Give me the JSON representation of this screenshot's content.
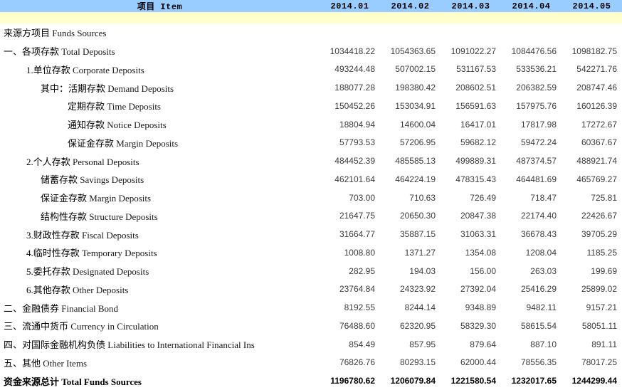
{
  "header": {
    "item_label": "项目 Item",
    "columns": [
      "2014.01",
      "2014.02",
      "2014.03",
      "2014.04",
      "2014.05"
    ]
  },
  "colors": {
    "header_bg": "#99CCFF",
    "subheader_bg": "#FFFFCC",
    "label_text": "#000000",
    "number_text": "#3c3c3c"
  },
  "rows": [
    {
      "label_zh": "来源方项目",
      "label_en": "Funds Sources",
      "indent": 0,
      "bold": false,
      "values": [
        "",
        "",
        "",
        "",
        ""
      ]
    },
    {
      "label_zh": "一、各项存款",
      "label_en": "Total Deposits",
      "indent": 0,
      "bold": false,
      "values": [
        "1034418.22",
        "1054363.65",
        "1091022.27",
        "1084476.56",
        "1098182.75"
      ]
    },
    {
      "label_zh": "1.单位存款",
      "label_en": "Corporate Deposits",
      "indent": 1,
      "bold": false,
      "values": [
        "493244.48",
        "507002.15",
        "531167.53",
        "533536.21",
        "542271.76"
      ]
    },
    {
      "label_zh": "其中：活期存款",
      "label_en": "Demand Deposits",
      "indent": 2,
      "bold": false,
      "values": [
        "188077.28",
        "198380.42",
        "208602.51",
        "206382.59",
        "208747.46"
      ]
    },
    {
      "label_zh": "定期存款",
      "label_en": "Time Deposits",
      "indent": 3,
      "bold": false,
      "values": [
        "150452.26",
        "153034.91",
        "156591.63",
        "157975.76",
        "160126.39"
      ]
    },
    {
      "label_zh": "通知存款",
      "label_en": "Notice Deposits",
      "indent": 3,
      "bold": false,
      "values": [
        "18804.94",
        "14600.04",
        "16417.01",
        "17817.98",
        "17272.67"
      ]
    },
    {
      "label_zh": "保证金存款",
      "label_en": "Margin Deposits",
      "indent": 3,
      "bold": false,
      "values": [
        "57793.53",
        "57206.95",
        "59682.12",
        "59472.24",
        "60367.67"
      ]
    },
    {
      "label_zh": "2.个人存款",
      "label_en": " Personal Deposits",
      "indent": 1,
      "bold": false,
      "values": [
        "484452.39",
        "485585.13",
        "499889.31",
        "487374.57",
        "488921.74"
      ]
    },
    {
      "label_zh": "储蓄存款",
      "label_en": "Savings Deposits",
      "indent": 2,
      "bold": false,
      "values": [
        "462101.64",
        "464224.19",
        "478315.43",
        "464481.69",
        "465769.27"
      ]
    },
    {
      "label_zh": "保证金存款",
      "label_en": "Margin Deposits",
      "indent": 2,
      "bold": false,
      "values": [
        "703.00",
        "710.63",
        "726.49",
        "718.47",
        "725.81"
      ]
    },
    {
      "label_zh": "结构性存款",
      "label_en": "Structure Deposits",
      "indent": 2,
      "bold": false,
      "values": [
        "21647.75",
        "20650.30",
        "20847.38",
        "22174.40",
        "22426.67"
      ]
    },
    {
      "label_zh": "3.财政性存款",
      "label_en": "Fiscal Deposits",
      "indent": 1,
      "bold": false,
      "values": [
        "31664.77",
        "35887.15",
        "31063.31",
        "36678.43",
        "39705.29"
      ]
    },
    {
      "label_zh": "4.临时性存款",
      "label_en": "Temporary Deposits",
      "indent": 1,
      "bold": false,
      "values": [
        "1008.80",
        "1371.27",
        "1354.08",
        "1208.04",
        "1185.25"
      ]
    },
    {
      "label_zh": "5.委托存款",
      "label_en": "Designated  Deposits",
      "indent": 1,
      "bold": false,
      "values": [
        "282.95",
        "194.03",
        "156.00",
        "263.03",
        "199.69"
      ]
    },
    {
      "label_zh": "6.其他存款",
      "label_en": "Other Deposits",
      "indent": 1,
      "bold": false,
      "values": [
        "23764.84",
        "24323.92",
        "27392.04",
        "25416.29",
        "25899.02"
      ]
    },
    {
      "label_zh": "二、金融债券",
      "label_en": "Financial Bond",
      "indent": 0,
      "bold": false,
      "values": [
        "8192.55",
        "8244.14",
        "9348.89",
        "9482.11",
        "9157.21"
      ]
    },
    {
      "label_zh": "三、流通中货币",
      "label_en": "Currency in Circulation",
      "indent": 0,
      "bold": false,
      "values": [
        "76488.60",
        "62320.95",
        "58329.30",
        "58615.54",
        "58051.11"
      ]
    },
    {
      "label_zh": "四、对国际金融机构负债",
      "label_en": "Liabilities to International Financial Ins",
      "indent": 0,
      "bold": false,
      "values": [
        "854.49",
        "857.95",
        "879.64",
        "887.10",
        "891.11"
      ]
    },
    {
      "label_zh": "五、其他",
      "label_en": " Other Items",
      "indent": 0,
      "bold": false,
      "values": [
        "76826.76",
        "80293.15",
        "62000.44",
        "78556.35",
        "78017.25"
      ]
    },
    {
      "label_zh": "资金来源总计",
      "label_en": "Total Funds Sources",
      "indent": 0,
      "bold": true,
      "values": [
        "1196780.62",
        "1206079.84",
        "1221580.54",
        "1232017.65",
        "1244299.44"
      ]
    }
  ]
}
